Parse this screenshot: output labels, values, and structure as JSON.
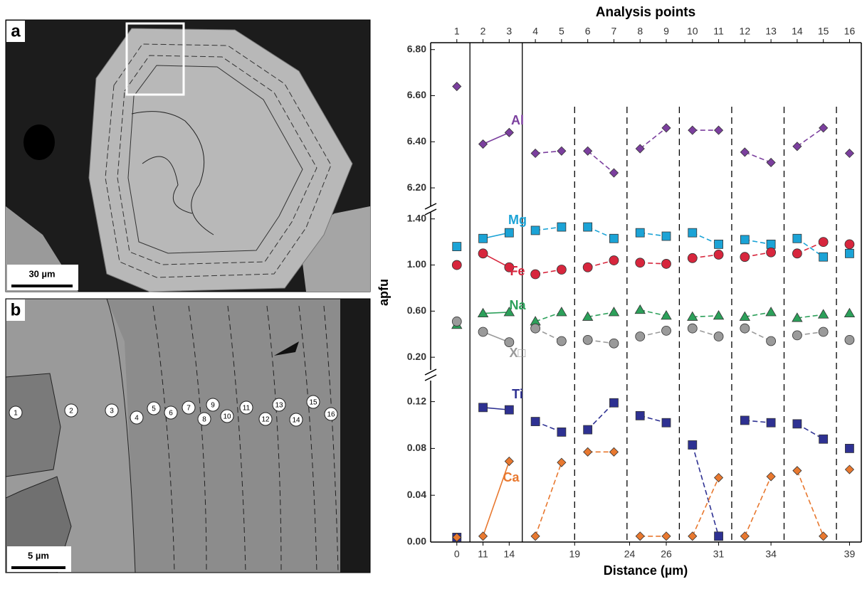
{
  "images": [
    {
      "label": "a",
      "scale_bar": "30 µm"
    },
    {
      "label": "b",
      "scale_bar": "5 µm",
      "points": [
        "1",
        "2",
        "3",
        "4",
        "5",
        "6",
        "7",
        "8",
        "9",
        "10",
        "11",
        "12",
        "13",
        "14",
        "15",
        "16"
      ]
    }
  ],
  "chart_data": {
    "type": "line",
    "title": "Analysis points",
    "x_label": "Distance (µm)",
    "y_label": "apfu",
    "x": [
      1,
      2,
      3,
      4,
      5,
      6,
      7,
      8,
      9,
      10,
      11,
      12,
      13,
      14,
      15,
      16
    ],
    "xlim": [
      0,
      16.45
    ],
    "xticks": [
      1,
      2,
      3,
      4,
      5,
      6,
      7,
      8,
      9,
      10,
      11,
      12,
      13,
      14,
      15,
      16
    ],
    "x2ticks": [
      {
        "value": 1,
        "label": "0"
      },
      {
        "value": 2,
        "label": "11"
      },
      {
        "value": 3,
        "label": "14"
      },
      {
        "value": 5.5,
        "label": "19"
      },
      {
        "value": 7.6,
        "label": "24"
      },
      {
        "value": 9,
        "label": "26"
      },
      {
        "value": 11,
        "label": "31"
      },
      {
        "value": 13,
        "label": "34"
      },
      {
        "value": 16,
        "label": "39"
      }
    ],
    "y_segments": [
      {
        "ylim": [
          6.12,
          6.83
        ],
        "yticks": [
          {
            "value": 6.2,
            "label": "6.20"
          },
          {
            "value": 6.4,
            "label": "6.40"
          },
          {
            "value": 6.6,
            "label": "6.60"
          },
          {
            "value": 6.8,
            "label": "6.80"
          }
        ]
      },
      {
        "ylim": [
          0.09,
          1.46
        ],
        "yticks": [
          {
            "value": 0.2,
            "label": "0.20"
          },
          {
            "value": 0.6,
            "label": "0.60"
          },
          {
            "value": 1.0,
            "label": "1.00"
          },
          {
            "value": 1.4,
            "label": "1.40"
          }
        ]
      },
      {
        "ylim": [
          0,
          0.138
        ],
        "yticks": [
          {
            "value": 0,
            "label": "0.00"
          },
          0.04,
          0.08,
          0.12
        ]
      }
    ],
    "series": [
      {
        "name": "Al",
        "color": "#7b3f9e",
        "marker": "diamond",
        "segment": 0,
        "values": [
          6.64,
          6.39,
          6.44,
          6.35,
          6.36,
          6.36,
          6.265,
          6.37,
          6.46,
          6.45,
          6.45,
          6.355,
          6.31,
          6.38,
          6.46,
          6.35
        ]
      },
      {
        "name": "Mg",
        "color": "#1ba3d6",
        "marker": "square",
        "segment": 1,
        "values": [
          1.16,
          1.23,
          1.28,
          1.3,
          1.33,
          1.33,
          1.23,
          1.28,
          1.25,
          1.28,
          1.18,
          1.22,
          1.18,
          1.23,
          1.07,
          1.1
        ]
      },
      {
        "name": "Fe",
        "color": "#d7263d",
        "marker": "circle",
        "segment": 1,
        "values": [
          1.0,
          1.1,
          0.98,
          0.92,
          0.96,
          0.98,
          1.04,
          1.02,
          1.01,
          1.06,
          1.09,
          1.07,
          1.11,
          1.1,
          1.2,
          1.18
        ]
      },
      {
        "name": "Na",
        "color": "#2ca05a",
        "marker": "triangle",
        "segment": 1,
        "values": [
          0.48,
          0.58,
          0.59,
          0.51,
          0.59,
          0.55,
          0.59,
          0.61,
          0.56,
          0.55,
          0.56,
          0.55,
          0.59,
          0.54,
          0.57,
          0.58
        ]
      },
      {
        "name": "X□",
        "color": "#9a9a9a",
        "marker": "circle",
        "segment": 1,
        "values": [
          0.51,
          0.42,
          0.33,
          0.45,
          0.34,
          0.35,
          0.32,
          0.38,
          0.43,
          0.45,
          0.38,
          0.45,
          0.34,
          0.39,
          0.42,
          0.35
        ]
      },
      {
        "name": "Ti",
        "color": "#2e3192",
        "marker": "square",
        "segment": 2,
        "values": [
          0.004,
          0.115,
          0.113,
          0.103,
          0.094,
          0.096,
          0.119,
          0.108,
          0.102,
          0.083,
          0.005,
          0.104,
          0.102,
          0.101,
          0.088,
          0.08
        ]
      },
      {
        "name": "Ca",
        "color": "#e8782f",
        "marker": "diamond",
        "segment": 2,
        "values": [
          0.004,
          0.005,
          0.069,
          0.005,
          0.068,
          0.077,
          0.077,
          0.005,
          0.005,
          0.005,
          0.055,
          0.005,
          0.056,
          0.061,
          0.005,
          0.062
        ]
      }
    ]
  }
}
